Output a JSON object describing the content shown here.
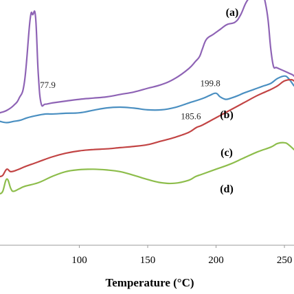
{
  "chart_data": {
    "type": "line",
    "xlabel": "Temperature (°C)",
    "ylabel": "",
    "xlim": [
      42,
      257
    ],
    "ylim": [
      0,
      100
    ],
    "grid": false,
    "legend": "none",
    "x_ticks": [
      100,
      150,
      200,
      250
    ],
    "y_ticks": [],
    "series": [
      {
        "name": "(a)",
        "color": "#8e63b5",
        "x": [
          42,
          47,
          52,
          56,
          60,
          64,
          66,
          68,
          70,
          72,
          75,
          80,
          90,
          100,
          110,
          120,
          130,
          140,
          150,
          160,
          170,
          180,
          185,
          188,
          190,
          193,
          198,
          203,
          208,
          214,
          218,
          222,
          226,
          229,
          232,
          234,
          236,
          238,
          240,
          242,
          244,
          246,
          248,
          250,
          252,
          254,
          256,
          257
        ],
        "values": [
          54,
          55,
          57,
          60,
          67,
          92,
          94,
          93,
          70,
          58,
          57.5,
          58,
          58.8,
          59.5,
          60,
          60.5,
          61.5,
          62.5,
          64,
          65.5,
          68,
          72,
          75,
          77,
          80,
          84,
          86,
          88,
          90,
          91,
          94,
          99,
          102,
          103,
          104,
          103,
          99,
          92,
          80,
          73,
          72.5,
          72,
          71.5,
          71,
          70.5,
          70,
          69.5,
          69
        ]
      },
      {
        "name": "(b)",
        "color": "#4a8fc1",
        "x": [
          42,
          47,
          52,
          57,
          62,
          68,
          75,
          80,
          90,
          100,
          110,
          120,
          130,
          140,
          150,
          160,
          170,
          180,
          190,
          195,
          199.8,
          203,
          207,
          211,
          216,
          220,
          225,
          230,
          235,
          240,
          245,
          250,
          253,
          257
        ],
        "values": [
          50.5,
          50,
          50.5,
          51,
          52,
          52.8,
          53.5,
          53.5,
          53.8,
          54,
          55,
          56,
          56.3,
          55.9,
          55.2,
          55.2,
          56.2,
          58,
          59.8,
          61,
          62,
          60.5,
          59.5,
          60,
          61,
          62,
          63,
          64,
          65,
          66,
          68,
          69,
          68,
          65
        ]
      },
      {
        "name": "(c)",
        "color": "#c24444",
        "x": [
          42,
          44,
          47,
          50,
          55,
          60,
          65,
          70,
          80,
          90,
          100,
          110,
          120,
          130,
          140,
          150,
          160,
          170,
          180,
          185.6,
          190,
          200,
          210,
          220,
          230,
          240,
          245,
          250,
          255,
          257
        ],
        "values": [
          28,
          28.5,
          31,
          30,
          30.8,
          32,
          33,
          34,
          36,
          37.5,
          38.5,
          39,
          39.3,
          39.8,
          40.3,
          41,
          42.5,
          44,
          46,
          48,
          49,
          52,
          55,
          58,
          61,
          63.5,
          65,
          67,
          67.5,
          67
        ]
      },
      {
        "name": "(d)",
        "color": "#8dbd4b",
        "x": [
          42,
          44,
          47,
          50,
          52,
          56,
          60,
          70,
          80,
          90,
          100,
          110,
          120,
          130,
          140,
          150,
          160,
          170,
          180,
          185,
          190,
          200,
          210,
          220,
          230,
          240,
          245,
          250,
          253,
          257
        ],
        "values": [
          21,
          22,
          27,
          23,
          22,
          23,
          24,
          25.5,
          28,
          30,
          30.8,
          31,
          30.7,
          30,
          28.5,
          26.8,
          25.5,
          25.3,
          26.5,
          28,
          29,
          31,
          33,
          35.5,
          38,
          40,
          41.5,
          41.8,
          41,
          39
        ]
      }
    ],
    "annotations": [
      {
        "text": "77.9",
        "x": 77.9,
        "series": "(a)"
      },
      {
        "text": "199.8",
        "x": 199.8,
        "series": "(b)"
      },
      {
        "text": "185.6",
        "x": 185.6,
        "series": "(c)"
      }
    ]
  }
}
